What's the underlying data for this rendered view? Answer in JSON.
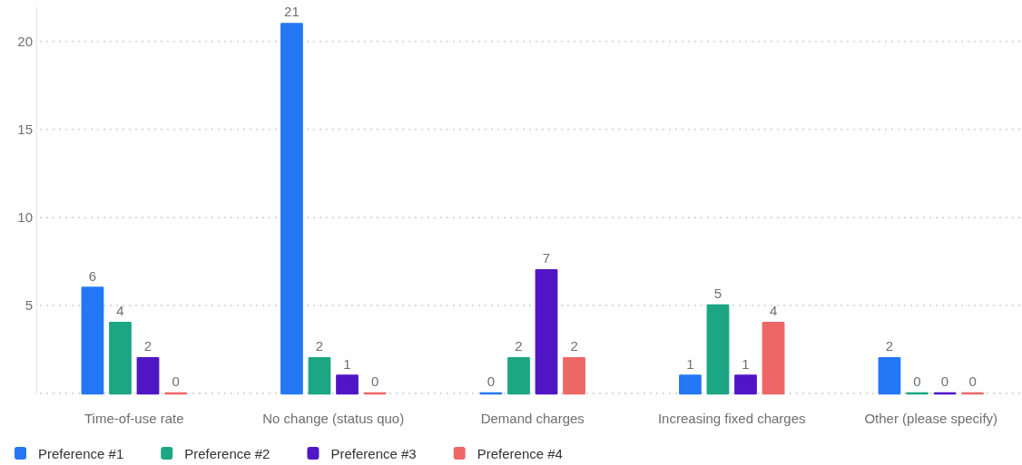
{
  "chart_data": {
    "type": "bar",
    "categories": [
      "Time-of-use rate",
      "No change (status quo)",
      "Demand charges",
      "Increasing fixed charges",
      "Other (please specify)"
    ],
    "series": [
      {
        "name": "Preference #1",
        "color": "#2478f6",
        "values": [
          6,
          21,
          0,
          1,
          2
        ]
      },
      {
        "name": "Preference #2",
        "color": "#1ca683",
        "values": [
          4,
          2,
          2,
          5,
          0
        ]
      },
      {
        "name": "Preference #3",
        "color": "#5016c6",
        "values": [
          2,
          1,
          7,
          1,
          0
        ]
      },
      {
        "name": "Preference #4",
        "color": "#ee6767",
        "values": [
          0,
          0,
          2,
          4,
          0
        ]
      }
    ],
    "ylim": [
      0,
      22
    ],
    "yticks": [
      {
        "value": 0,
        "label": null
      },
      5,
      10,
      15,
      20
    ],
    "grid": "y",
    "legend": "bottom",
    "data_labels": true
  }
}
